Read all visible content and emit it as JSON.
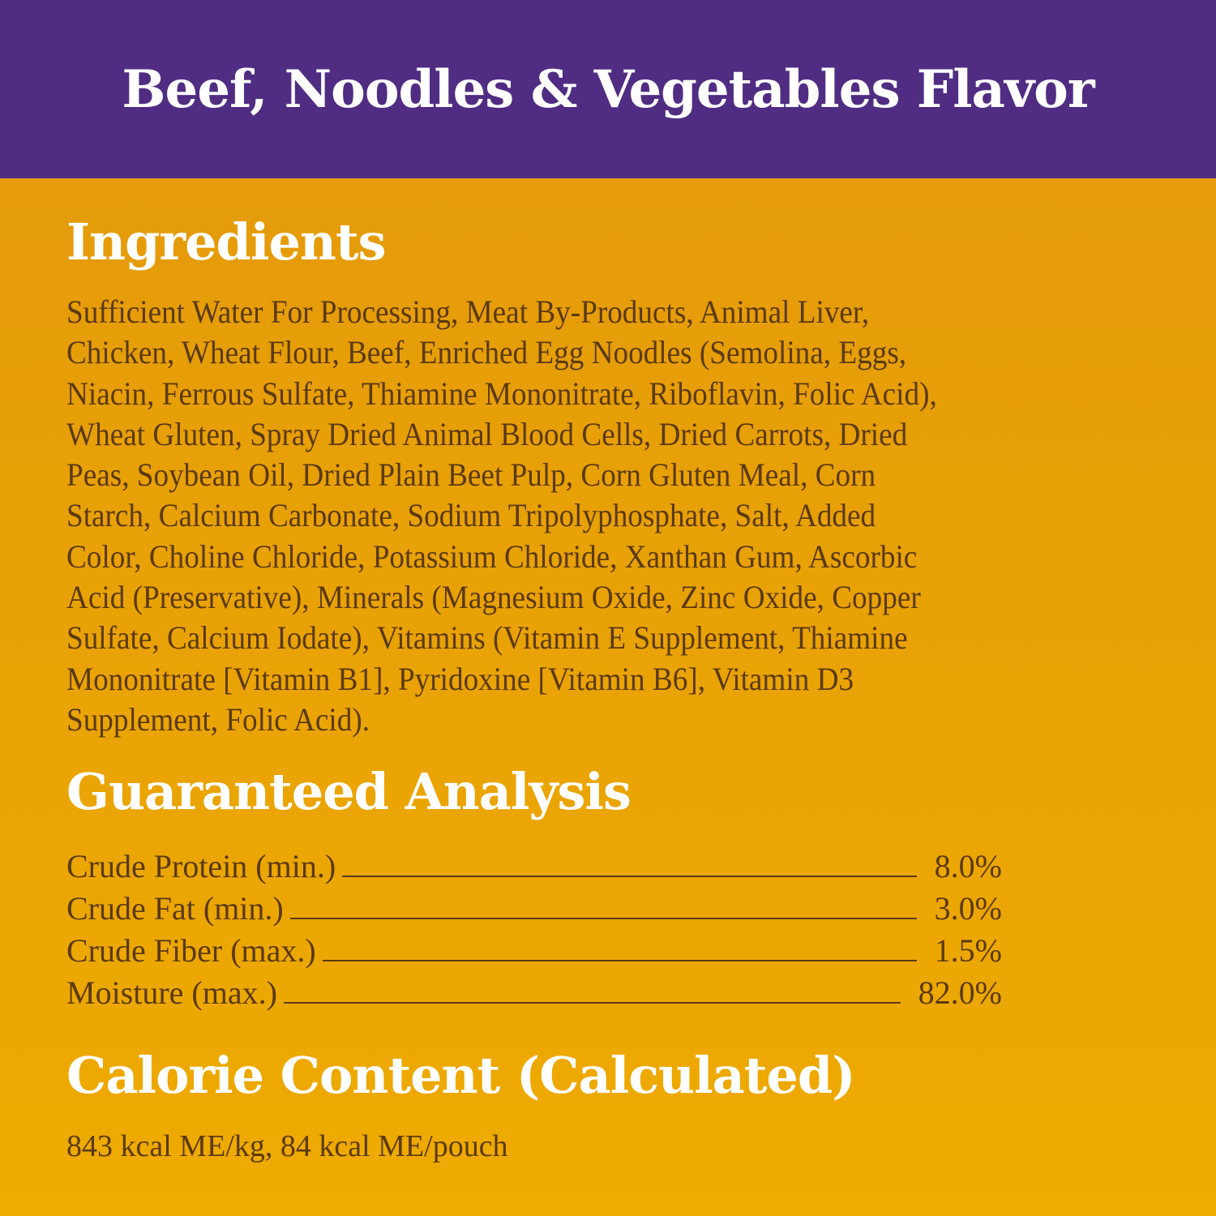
{
  "header": {
    "title": "Beef, Noodles & Vegetables Flavor"
  },
  "ingredients": {
    "heading": "Ingredients",
    "lines": [
      "Sufficient Water For Processing, Meat By-Products, Animal Liver,",
      "Chicken, Wheat Flour, Beef,  Enriched Egg Noodles (Semolina, Eggs,",
      "Niacin, Ferrous Sulfate, Thiamine Mononitrate, Riboflavin, Folic Acid),",
      "Wheat Gluten, Spray Dried Animal Blood Cells, Dried Carrots, Dried",
      "Peas, Soybean Oil,  Dried Plain Beet Pulp, Corn Gluten Meal,  Corn",
      "Starch, Calcium Carbonate, Sodium Tripolyphosphate, Salt, Added",
      "Color, Choline Chloride, Potassium Chloride, Xanthan Gum, Ascorbic",
      "Acid (Preservative), Minerals (Magnesium Oxide, Zinc Oxide, Copper",
      "Sulfate, Calcium Iodate), Vitamins (Vitamin E Supplement, Thiamine",
      "Mononitrate [Vitamin B1], Pyridoxine [Vitamin B6], Vitamin D3",
      "Supplement, Folic Acid)."
    ]
  },
  "analysis": {
    "heading": "Guaranteed Analysis",
    "rows": [
      {
        "label": "Crude Protein (min.)",
        "value": "8.0%"
      },
      {
        "label": "Crude Fat (min.)",
        "value": "3.0%"
      },
      {
        "label": "Crude Fiber (max.)",
        "value": "1.5%"
      },
      {
        "label": "Moisture (max.)",
        "value": "82.0%"
      }
    ]
  },
  "calories": {
    "heading": "Calorie Content (Calculated)",
    "text": "843 kcal ME/kg, 84 kcal ME/pouch"
  },
  "colors": {
    "banner": "#502d82",
    "background": "#e9a206",
    "heading_text": "#ffffff",
    "body_text": "#5b3a12"
  }
}
